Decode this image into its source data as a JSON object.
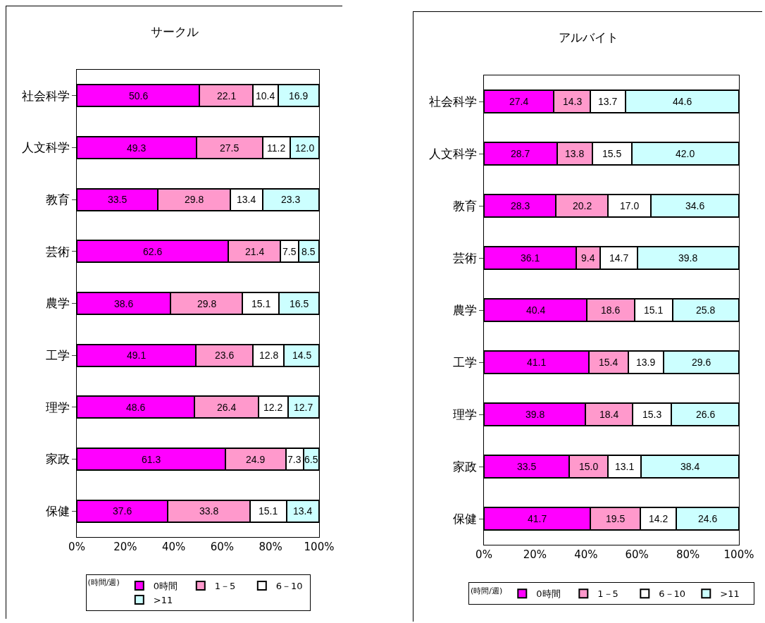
{
  "chart_data": [
    {
      "type": "bar",
      "title": "サークル",
      "orientation": "horizontal",
      "stacked": true,
      "legend": "bottom",
      "legend_title": "(時間/週)",
      "grid": false,
      "categories": [
        "社会科学",
        "人文科学",
        "教育",
        "芸術",
        "農学",
        "工学",
        "理学",
        "家政",
        "保健"
      ],
      "xlim": [
        0,
        100
      ],
      "xticks": [
        {
          "value": 0,
          "label": "0%"
        },
        {
          "value": 20,
          "label": "20%"
        },
        {
          "value": 40,
          "label": "40%"
        },
        {
          "value": 60,
          "label": "60%"
        },
        {
          "value": 80,
          "label": "80%"
        },
        {
          "value": 100,
          "label": "100%"
        }
      ],
      "series": [
        {
          "name": "0時間",
          "color": "#ff00ff",
          "values": [
            50.6,
            49.3,
            33.5,
            62.6,
            38.6,
            49.1,
            48.6,
            61.3,
            37.6
          ],
          "value_labels": [
            "50.6",
            "49.3",
            "33.5",
            "62.6",
            "38.6",
            "49.1",
            "48.6",
            "61.3",
            "37.6"
          ]
        },
        {
          "name": "1－5",
          "color": "#ff99cc",
          "values": [
            22.1,
            27.5,
            29.8,
            21.4,
            29.8,
            23.6,
            26.4,
            24.9,
            33.8
          ],
          "value_labels": [
            "22.1",
            "27.5",
            "29.8",
            "21.4",
            "29.8",
            "23.6",
            "26.4",
            "24.9",
            "33.8"
          ]
        },
        {
          "name": "6－10",
          "color": "#ffffff",
          "values": [
            10.4,
            11.2,
            13.4,
            7.5,
            15.1,
            12.8,
            12.2,
            7.3,
            15.1
          ],
          "value_labels": [
            "10.4",
            "11.2",
            "13.4",
            "7.5",
            "15.1",
            "12.8",
            "12.2",
            "7.3",
            "15.1"
          ]
        },
        {
          "name": ">11",
          "color": "#ccffff",
          "values": [
            16.9,
            12.0,
            23.3,
            8.5,
            16.5,
            14.5,
            12.7,
            6.5,
            13.4
          ],
          "value_labels": [
            "16.9",
            "12.0",
            "23.3",
            "8.5",
            "16.5",
            "14.5",
            "12.7",
            "6.5",
            "13.4"
          ]
        }
      ]
    },
    {
      "type": "bar",
      "title": "アルバイト",
      "orientation": "horizontal",
      "stacked": true,
      "legend": "bottom",
      "legend_title": "(時間/週)",
      "grid": false,
      "categories": [
        "社会科学",
        "人文科学",
        "教育",
        "芸術",
        "農学",
        "工学",
        "理学",
        "家政",
        "保健"
      ],
      "xlim": [
        0,
        100
      ],
      "xticks": [
        {
          "value": 0,
          "label": "0%"
        },
        {
          "value": 20,
          "label": "20%"
        },
        {
          "value": 40,
          "label": "40%"
        },
        {
          "value": 60,
          "label": "60%"
        },
        {
          "value": 80,
          "label": "80%"
        },
        {
          "value": 100,
          "label": "100%"
        }
      ],
      "series": [
        {
          "name": "0時間",
          "color": "#ff00ff",
          "values": [
            27.4,
            28.7,
            28.3,
            36.1,
            40.4,
            41.1,
            39.8,
            33.5,
            41.7
          ],
          "value_labels": [
            "27.4",
            "28.7",
            "28.3",
            "36.1",
            "40.4",
            "41.1",
            "39.8",
            "33.5",
            "41.7"
          ]
        },
        {
          "name": "1－5",
          "color": "#ff99cc",
          "values": [
            14.3,
            13.8,
            20.2,
            9.4,
            18.6,
            15.4,
            18.4,
            15.0,
            19.5
          ],
          "value_labels": [
            "14.3",
            "13.8",
            "20.2",
            "9.4",
            "18.6",
            "15.4",
            "18.4",
            "15.0",
            "19.5"
          ]
        },
        {
          "name": "6－10",
          "color": "#ffffff",
          "values": [
            13.7,
            15.5,
            17.0,
            14.7,
            15.1,
            13.9,
            15.3,
            13.1,
            14.2
          ],
          "value_labels": [
            "13.7",
            "15.5",
            "17.0",
            "14.7",
            "15.1",
            "13.9",
            "15.3",
            "13.1",
            "14.2"
          ]
        },
        {
          "name": ">11",
          "color": "#ccffff",
          "values": [
            44.6,
            42.0,
            34.6,
            39.8,
            25.8,
            29.6,
            26.6,
            38.4,
            24.6
          ],
          "value_labels": [
            "44.6",
            "42.0",
            "34.6",
            "39.8",
            "25.8",
            "29.6",
            "26.6",
            "38.4",
            "24.6"
          ]
        }
      ]
    }
  ]
}
